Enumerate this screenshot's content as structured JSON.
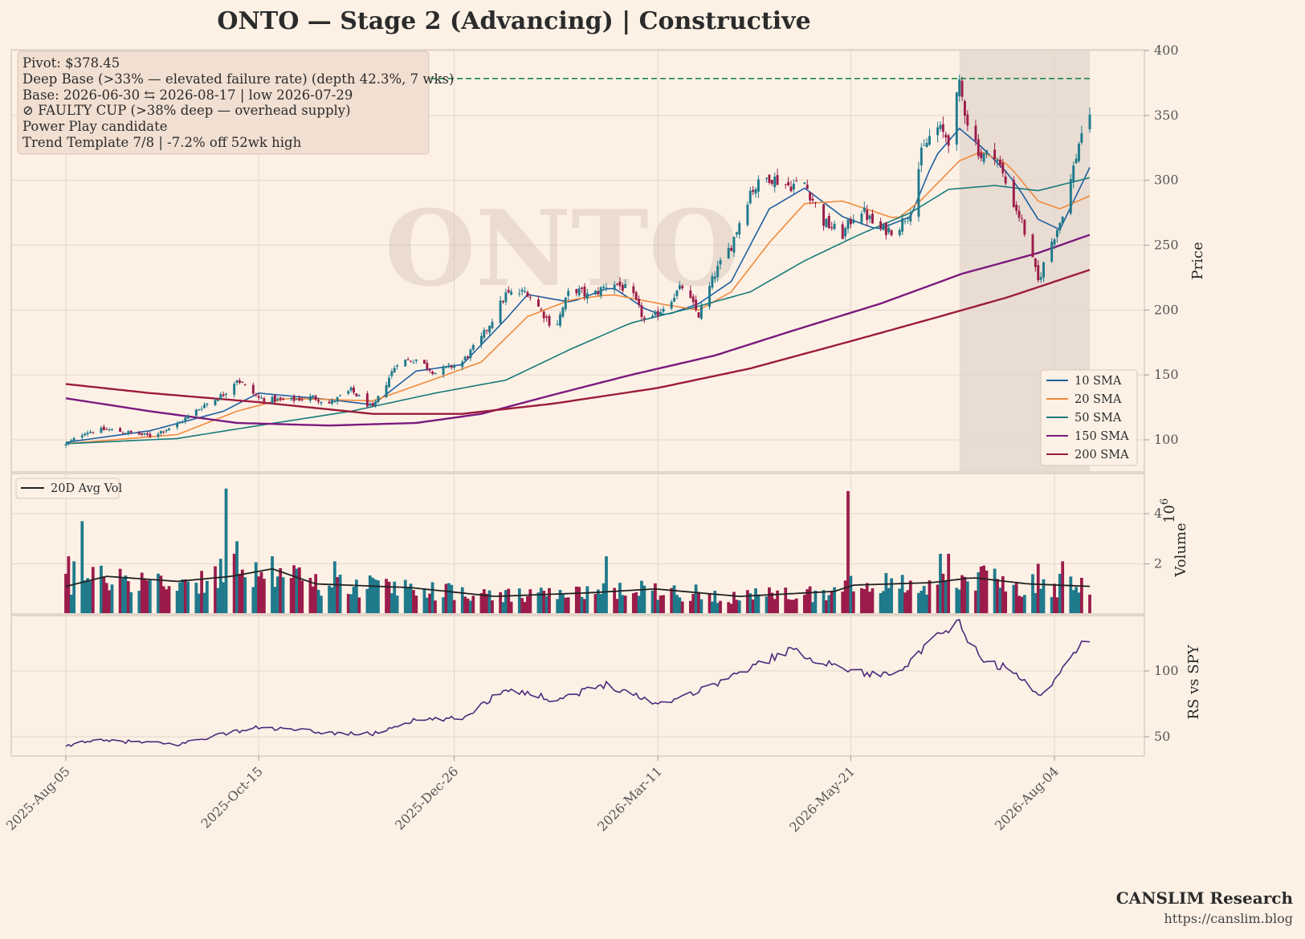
{
  "title": "ONTO  —  Stage 2 (Advancing)  |  Constructive",
  "watermark": "ONTO",
  "annotation": [
    "Pivot: $378.45",
    "Deep Base (>33% — elevated failure rate)  (depth 42.3%, 7 wks)",
    "Base: 2026-06-30 ⇆ 2026-08-17  |  low 2026-07-29",
    "⊘ FAULTY CUP (>38% deep — overhead supply)",
    "Power Play candidate",
    "Trend Template 7/8  |  -7.2% off 52wk high"
  ],
  "footer": {
    "name": "CANSLIM Research",
    "url": "https://canslim.blog"
  },
  "colors": {
    "background": "#fdf1e6",
    "up_candle": "#1f7a8c",
    "down_candle": "#9b1c4a",
    "sma10": "#1f5fa0",
    "sma20": "#f08a3c",
    "sma50": "#177a7a",
    "sma150": "#7b1a7e",
    "sma200": "#9b1c3c",
    "pivot_line": "#1a8a4a",
    "rs_line": "#4b2a7a",
    "volume_avg": "#222222",
    "base_shade": "#e9ddd3"
  },
  "chart_data": {
    "type": "candlestick",
    "x_start": "2025-08-05",
    "x_end": "2026-08-17",
    "x_tick_labels": [
      "2025-Aug-05",
      "2025-Oct-15",
      "2025-Dec-26",
      "2026-Mar-11",
      "2026-May-21",
      "2026-Aug-04"
    ],
    "x_tick_dates": [
      "2025-08-05",
      "2025-10-15",
      "2025-12-26",
      "2026-03-11",
      "2026-05-21",
      "2026-08-04"
    ],
    "price_panel": {
      "ylabel": "Price",
      "ylim": [
        70,
        400
      ],
      "yticks": [
        100,
        150,
        200,
        250,
        300,
        350,
        400
      ],
      "pivot": 378.45,
      "base_start": "2026-06-30",
      "base_end": "2026-08-17",
      "close_anchors": [
        [
          "2025-08-05",
          96
        ],
        [
          "2025-08-12",
          106
        ],
        [
          "2025-08-20",
          108
        ],
        [
          "2025-09-05",
          103
        ],
        [
          "2025-09-15",
          112
        ],
        [
          "2025-09-25",
          127
        ],
        [
          "2025-10-02",
          135
        ],
        [
          "2025-10-07",
          147
        ],
        [
          "2025-10-15",
          132
        ],
        [
          "2025-10-25",
          130
        ],
        [
          "2025-11-04",
          133
        ],
        [
          "2025-11-10",
          128
        ],
        [
          "2025-11-18",
          138
        ],
        [
          "2025-11-26",
          124
        ],
        [
          "2025-12-05",
          160
        ],
        [
          "2025-12-12",
          162
        ],
        [
          "2025-12-19",
          152
        ],
        [
          "2025-12-29",
          160
        ],
        [
          "2026-01-05",
          178
        ],
        [
          "2026-01-14",
          212
        ],
        [
          "2026-01-22",
          214
        ],
        [
          "2026-02-01",
          185
        ],
        [
          "2026-02-07",
          218
        ],
        [
          "2026-02-14",
          210
        ],
        [
          "2026-02-22",
          222
        ],
        [
          "2026-03-01",
          214
        ],
        [
          "2026-03-07",
          188
        ],
        [
          "2026-03-14",
          205
        ],
        [
          "2026-03-20",
          218
        ],
        [
          "2026-03-26",
          196
        ],
        [
          "2026-04-01",
          228
        ],
        [
          "2026-04-07",
          250
        ],
        [
          "2026-04-14",
          292
        ],
        [
          "2026-04-21",
          303
        ],
        [
          "2026-04-28",
          296
        ],
        [
          "2026-05-04",
          298
        ],
        [
          "2026-05-11",
          268
        ],
        [
          "2026-05-18",
          258
        ],
        [
          "2026-05-24",
          280
        ],
        [
          "2026-05-31",
          262
        ],
        [
          "2026-06-07",
          262
        ],
        [
          "2026-06-12",
          278
        ],
        [
          "2026-06-16",
          320
        ],
        [
          "2026-06-21",
          342
        ],
        [
          "2026-06-26",
          332
        ],
        [
          "2026-06-30",
          372
        ],
        [
          "2026-07-03",
          346
        ],
        [
          "2026-07-08",
          318
        ],
        [
          "2026-07-13",
          322
        ],
        [
          "2026-07-18",
          292
        ],
        [
          "2026-07-23",
          268
        ],
        [
          "2026-07-29",
          222
        ],
        [
          "2026-08-02",
          248
        ],
        [
          "2026-08-06",
          268
        ],
        [
          "2026-08-10",
          300
        ],
        [
          "2026-08-14",
          338
        ],
        [
          "2026-08-17",
          345
        ]
      ],
      "sma_series": [
        {
          "name": "10 SMA",
          "key": "sma10",
          "points": [
            [
              "2025-08-05",
              98
            ],
            [
              "2025-09-05",
              107
            ],
            [
              "2025-10-02",
              122
            ],
            [
              "2025-10-15",
              136
            ],
            [
              "2025-11-10",
              131
            ],
            [
              "2025-11-26",
              127
            ],
            [
              "2025-12-12",
              153
            ],
            [
              "2025-12-29",
              158
            ],
            [
              "2026-01-14",
              193
            ],
            [
              "2026-01-22",
              212
            ],
            [
              "2026-02-07",
              206
            ],
            [
              "2026-02-22",
              218
            ],
            [
              "2026-03-07",
              200
            ],
            [
              "2026-03-14",
              196
            ],
            [
              "2026-03-26",
              205
            ],
            [
              "2026-04-07",
              222
            ],
            [
              "2026-04-21",
              278
            ],
            [
              "2026-05-04",
              294
            ],
            [
              "2026-05-18",
              272
            ],
            [
              "2026-05-31",
              262
            ],
            [
              "2026-06-12",
              272
            ],
            [
              "2026-06-21",
              318
            ],
            [
              "2026-06-30",
              340
            ],
            [
              "2026-07-08",
              326
            ],
            [
              "2026-07-18",
              305
            ],
            [
              "2026-07-23",
              290
            ],
            [
              "2026-07-29",
              270
            ],
            [
              "2026-08-06",
              262
            ],
            [
              "2026-08-17",
              310
            ]
          ]
        },
        {
          "name": "20 SMA",
          "key": "sma20",
          "points": [
            [
              "2025-08-05",
              97
            ],
            [
              "2025-09-15",
              104
            ],
            [
              "2025-10-07",
              122
            ],
            [
              "2025-10-25",
              132
            ],
            [
              "2025-11-26",
              130
            ],
            [
              "2025-12-19",
              147
            ],
            [
              "2026-01-05",
              160
            ],
            [
              "2026-01-22",
              195
            ],
            [
              "2026-02-07",
              208
            ],
            [
              "2026-02-22",
              212
            ],
            [
              "2026-03-14",
              204
            ],
            [
              "2026-03-26",
              200
            ],
            [
              "2026-04-07",
              214
            ],
            [
              "2026-04-21",
              252
            ],
            [
              "2026-05-04",
              282
            ],
            [
              "2026-05-18",
              284
            ],
            [
              "2026-06-07",
              270
            ],
            [
              "2026-06-16",
              285
            ],
            [
              "2026-06-30",
              315
            ],
            [
              "2026-07-08",
              322
            ],
            [
              "2026-07-18",
              312
            ],
            [
              "2026-07-29",
              284
            ],
            [
              "2026-08-06",
              278
            ],
            [
              "2026-08-17",
              288
            ]
          ]
        },
        {
          "name": "50 SMA",
          "key": "sma50",
          "points": [
            [
              "2025-08-05",
              97
            ],
            [
              "2025-09-15",
              101
            ],
            [
              "2025-10-15",
              111
            ],
            [
              "2025-11-18",
              122
            ],
            [
              "2025-12-19",
              136
            ],
            [
              "2026-01-14",
              146
            ],
            [
              "2026-02-07",
              170
            ],
            [
              "2026-03-01",
              190
            ],
            [
              "2026-03-26",
              203
            ],
            [
              "2026-04-14",
              214
            ],
            [
              "2026-05-04",
              238
            ],
            [
              "2026-05-24",
              258
            ],
            [
              "2026-06-12",
              275
            ],
            [
              "2026-06-26",
              293
            ],
            [
              "2026-07-13",
              296
            ],
            [
              "2026-07-29",
              292
            ],
            [
              "2026-08-17",
              302
            ]
          ]
        },
        {
          "name": "150 SMA",
          "key": "sma150",
          "points": [
            [
              "2025-08-05",
              132
            ],
            [
              "2025-09-05",
              122
            ],
            [
              "2025-10-07",
              113
            ],
            [
              "2025-11-10",
              111
            ],
            [
              "2025-12-12",
              113
            ],
            [
              "2026-01-05",
              120
            ],
            [
              "2026-02-01",
              135
            ],
            [
              "2026-03-01",
              150
            ],
            [
              "2026-04-01",
              165
            ],
            [
              "2026-05-01",
              185
            ],
            [
              "2026-06-01",
              205
            ],
            [
              "2026-07-01",
              228
            ],
            [
              "2026-07-29",
              244
            ],
            [
              "2026-08-17",
              258
            ]
          ]
        },
        {
          "name": "200 SMA",
          "key": "sma200",
          "points": [
            [
              "2025-08-05",
              143
            ],
            [
              "2025-09-05",
              136
            ],
            [
              "2025-10-15",
              129
            ],
            [
              "2025-11-26",
              120
            ],
            [
              "2025-12-29",
              120
            ],
            [
              "2026-02-01",
              128
            ],
            [
              "2026-03-11",
              140
            ],
            [
              "2026-04-14",
              155
            ],
            [
              "2026-05-21",
              176
            ],
            [
              "2026-06-21",
              194
            ],
            [
              "2026-07-18",
              210
            ],
            [
              "2026-08-17",
              231
            ]
          ]
        }
      ]
    },
    "volume_panel": {
      "ylabel": "Volume",
      "multiplier_label": "1e6",
      "ylim": [
        0,
        5
      ],
      "yticks": [
        2,
        4
      ],
      "avg_label": "20D Avg Vol",
      "spikes": [
        [
          "2025-08-05",
          1.6
        ],
        [
          "2025-08-06",
          2.3
        ],
        [
          "2025-08-08",
          2.1
        ],
        [
          "2025-08-11",
          3.7
        ],
        [
          "2025-09-29",
          1.9
        ],
        [
          "2025-10-01",
          2.2
        ],
        [
          "2025-10-03",
          5.0
        ],
        [
          "2025-10-06",
          2.4
        ],
        [
          "2025-10-07",
          2.9
        ],
        [
          "2025-10-20",
          2.3
        ],
        [
          "2025-11-12",
          2.1
        ],
        [
          "2026-02-20",
          2.3
        ],
        [
          "2026-05-20",
          4.9
        ],
        [
          "2026-06-23",
          2.4
        ],
        [
          "2026-06-26",
          2.4
        ],
        [
          "2026-07-29",
          2.0
        ],
        [
          "2026-08-07",
          2.1
        ]
      ],
      "avg_anchors": [
        [
          "2025-08-05",
          1.1
        ],
        [
          "2025-08-20",
          1.5
        ],
        [
          "2025-09-15",
          1.3
        ],
        [
          "2025-10-05",
          1.5
        ],
        [
          "2025-10-20",
          1.8
        ],
        [
          "2025-11-05",
          1.2
        ],
        [
          "2025-12-10",
          1.05
        ],
        [
          "2026-01-10",
          0.7
        ],
        [
          "2026-02-15",
          0.85
        ],
        [
          "2026-03-10",
          1.0
        ],
        [
          "2026-04-10",
          0.7
        ],
        [
          "2026-05-15",
          0.9
        ],
        [
          "2026-05-22",
          1.15
        ],
        [
          "2026-06-20",
          1.25
        ],
        [
          "2026-07-05",
          1.45
        ],
        [
          "2026-07-25",
          1.2
        ],
        [
          "2026-08-17",
          1.1
        ]
      ]
    },
    "rs_panel": {
      "ylabel": "RS vs SPY",
      "ylim": [
        35,
        140
      ],
      "yticks": [
        50,
        100
      ],
      "anchors": [
        [
          "2025-08-05",
          42
        ],
        [
          "2025-08-12",
          47
        ],
        [
          "2025-09-01",
          46
        ],
        [
          "2025-09-15",
          44
        ],
        [
          "2025-10-01",
          52
        ],
        [
          "2025-10-15",
          57
        ],
        [
          "2025-11-10",
          53
        ],
        [
          "2025-11-26",
          52
        ],
        [
          "2025-12-10",
          62
        ],
        [
          "2025-12-29",
          64
        ],
        [
          "2026-01-14",
          87
        ],
        [
          "2026-02-01",
          78
        ],
        [
          "2026-02-20",
          90
        ],
        [
          "2026-03-11",
          75
        ],
        [
          "2026-03-26",
          85
        ],
        [
          "2026-04-14",
          102
        ],
        [
          "2026-04-28",
          116
        ],
        [
          "2026-05-15",
          104
        ],
        [
          "2026-05-31",
          96
        ],
        [
          "2026-06-12",
          106
        ],
        [
          "2026-06-21",
          125
        ],
        [
          "2026-06-30",
          136
        ],
        [
          "2026-07-08",
          108
        ],
        [
          "2026-07-18",
          102
        ],
        [
          "2026-07-29",
          82
        ],
        [
          "2026-08-06",
          97
        ],
        [
          "2026-08-12",
          117
        ],
        [
          "2026-08-17",
          124
        ]
      ]
    }
  }
}
